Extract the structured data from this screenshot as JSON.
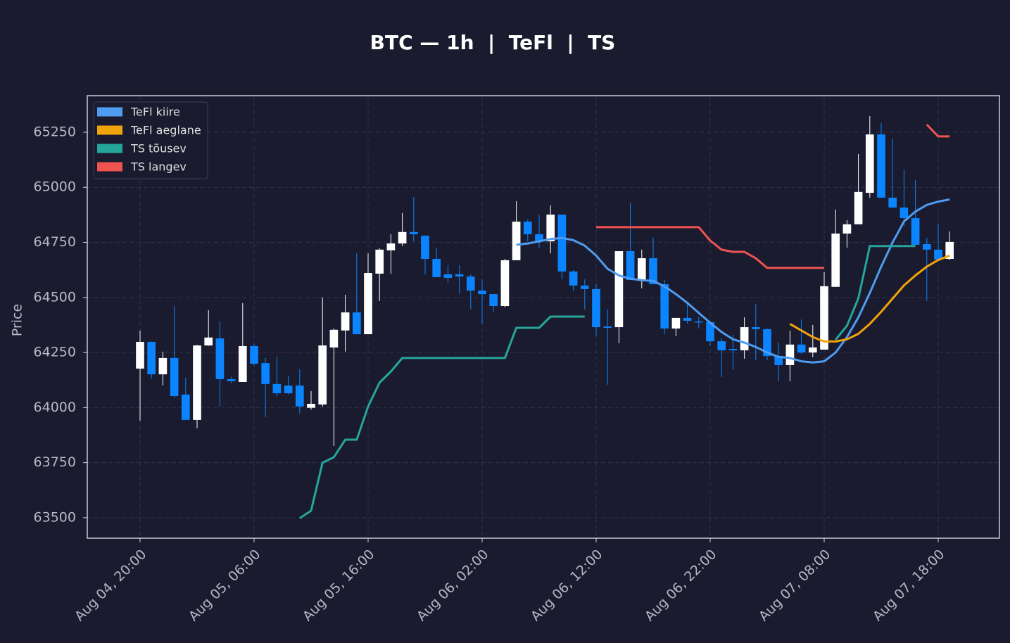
{
  "chart_data": {
    "type": "candlestick",
    "title": "BTC — 1h  |  TeFl  |  TS",
    "y_label": "Price",
    "x": [
      "Aug 04, 20:00",
      "Aug 04, 21:00",
      "Aug 04, 22:00",
      "Aug 04, 23:00",
      "Aug 05, 00:00",
      "Aug 05, 01:00",
      "Aug 05, 02:00",
      "Aug 05, 03:00",
      "Aug 05, 04:00",
      "Aug 05, 05:00",
      "Aug 05, 06:00",
      "Aug 05, 07:00",
      "Aug 05, 08:00",
      "Aug 05, 09:00",
      "Aug 05, 10:00",
      "Aug 05, 11:00",
      "Aug 05, 12:00",
      "Aug 05, 13:00",
      "Aug 05, 14:00",
      "Aug 05, 15:00",
      "Aug 05, 16:00",
      "Aug 05, 17:00",
      "Aug 05, 18:00",
      "Aug 05, 19:00",
      "Aug 05, 20:00",
      "Aug 05, 21:00",
      "Aug 05, 22:00",
      "Aug 05, 23:00",
      "Aug 06, 00:00",
      "Aug 06, 01:00",
      "Aug 06, 02:00",
      "Aug 06, 03:00",
      "Aug 06, 04:00",
      "Aug 06, 05:00",
      "Aug 06, 06:00",
      "Aug 06, 07:00",
      "Aug 06, 08:00",
      "Aug 06, 09:00",
      "Aug 06, 10:00",
      "Aug 06, 11:00",
      "Aug 06, 12:00",
      "Aug 06, 13:00",
      "Aug 06, 14:00",
      "Aug 06, 15:00",
      "Aug 06, 16:00",
      "Aug 06, 17:00",
      "Aug 06, 18:00",
      "Aug 06, 19:00",
      "Aug 06, 20:00",
      "Aug 06, 21:00",
      "Aug 06, 22:00",
      "Aug 06, 23:00",
      "Aug 07, 00:00",
      "Aug 07, 01:00",
      "Aug 07, 02:00",
      "Aug 07, 03:00",
      "Aug 07, 04:00",
      "Aug 07, 05:00",
      "Aug 07, 06:00",
      "Aug 07, 07:00",
      "Aug 07, 08:00",
      "Aug 07, 09:00",
      "Aug 07, 10:00",
      "Aug 07, 11:00",
      "Aug 07, 12:00",
      "Aug 07, 13:00",
      "Aug 07, 14:00",
      "Aug 07, 15:00",
      "Aug 07, 16:00",
      "Aug 07, 17:00",
      "Aug 07, 18:00",
      "Aug 07, 19:00"
    ],
    "open": [
      64177,
      64298,
      64151,
      64225,
      64059,
      63944,
      64282,
      64314,
      64129,
      64116,
      64279,
      64202,
      64107,
      64100,
      64100,
      63999,
      64014,
      64273,
      64350,
      64432,
      64333,
      64608,
      64714,
      64745,
      64797,
      64780,
      64675,
      64605,
      64605,
      64595,
      64531,
      64515,
      64461,
      64669,
      64844,
      64787,
      64755,
      64876,
      64618,
      64554,
      64538,
      64368,
      64365,
      64710,
      64579,
      64678,
      64560,
      64359,
      64407,
      64391,
      64388,
      64301,
      64266,
      64260,
      64365,
      64356,
      64234,
      64193,
      64286,
      64250,
      64263,
      64548,
      64790,
      64832,
      64975,
      65240,
      64953,
      64908,
      64860,
      64742,
      64717,
      64675
    ],
    "high": [
      64349,
      64300,
      64254,
      64461,
      64135,
      64285,
      64442,
      64391,
      64140,
      64474,
      64289,
      64225,
      64231,
      64145,
      64174,
      64075,
      64500,
      64359,
      64512,
      64700,
      64700,
      64723,
      64787,
      64883,
      64956,
      64782,
      64726,
      64646,
      64646,
      64605,
      64582,
      64515,
      64675,
      64937,
      64854,
      64876,
      64918,
      64876,
      64624,
      64582,
      64560,
      64445,
      64710,
      64930,
      64717,
      64771,
      64579,
      64407,
      64477,
      64413,
      64388,
      64314,
      64330,
      64410,
      64471,
      64359,
      64295,
      64349,
      64400,
      64375,
      64615,
      64899,
      64851,
      65151,
      65323,
      65291,
      65221,
      65081,
      65033,
      64771,
      64832,
      64800
    ],
    "low": [
      63941,
      64132,
      64100,
      64043,
      63944,
      63906,
      64280,
      64005,
      64110,
      64116,
      64190,
      63957,
      64052,
      64060,
      63973,
      63990,
      64005,
      63826,
      64254,
      64333,
      64333,
      64484,
      64608,
      64733,
      64755,
      64605,
      64592,
      64567,
      64516,
      64445,
      64378,
      64432,
      64455,
      64669,
      64755,
      64726,
      64700,
      64583,
      64531,
      64445,
      64327,
      64104,
      64292,
      64579,
      64541,
      64560,
      64333,
      64324,
      64381,
      64359,
      64279,
      64139,
      64171,
      64222,
      64215,
      64215,
      64120,
      64120,
      64244,
      64228,
      64263,
      64548,
      64726,
      64832,
      64953,
      64953,
      64908,
      64825,
      64739,
      64484,
      64665,
      64669
    ],
    "close": [
      64298,
      64151,
      64225,
      64052,
      63944,
      64282,
      64318,
      64129,
      64120,
      64279,
      64199,
      64107,
      64065,
      64065,
      64005,
      64017,
      64282,
      64353,
      64432,
      64333,
      64611,
      64717,
      64745,
      64797,
      64787,
      64675,
      64592,
      64589,
      64595,
      64531,
      64515,
      64461,
      64669,
      64844,
      64787,
      64755,
      64876,
      64618,
      64554,
      64538,
      64365,
      64362,
      64710,
      64579,
      64678,
      64560,
      64359,
      64407,
      64394,
      64388,
      64301,
      64260,
      64260,
      64365,
      64356,
      64234,
      64193,
      64286,
      64250,
      64273,
      64551,
      64790,
      64832,
      64979,
      65240,
      64953,
      64908,
      64860,
      64739,
      64717,
      64672,
      64752
    ],
    "up_color": "#ffffff",
    "down_color": "#0a84ff",
    "series": [
      {
        "name": "TeFl kiire",
        "color": "#4f9cf0",
        "values": [
          null,
          null,
          null,
          null,
          null,
          null,
          null,
          null,
          null,
          null,
          null,
          null,
          null,
          null,
          null,
          null,
          null,
          null,
          null,
          null,
          null,
          null,
          null,
          null,
          null,
          null,
          null,
          null,
          null,
          null,
          null,
          null,
          null,
          64739,
          64745,
          64755,
          64765,
          64770,
          64760,
          64735,
          64690,
          64630,
          64600,
          64585,
          64578,
          64575,
          64550,
          64515,
          64475,
          64430,
          64385,
          64343,
          64310,
          64295,
          64275,
          64250,
          64230,
          64225,
          64210,
          64205,
          64210,
          64250,
          64320,
          64410,
          64520,
          64640,
          64750,
          64845,
          64890,
          64920,
          64935,
          64945
        ]
      },
      {
        "name": "TeFl aeglane",
        "color": "#f0a30a",
        "values": [
          null,
          null,
          null,
          null,
          null,
          null,
          null,
          null,
          null,
          null,
          null,
          null,
          null,
          null,
          null,
          null,
          null,
          null,
          null,
          null,
          null,
          null,
          null,
          null,
          null,
          null,
          null,
          null,
          null,
          null,
          null,
          null,
          null,
          null,
          null,
          null,
          null,
          null,
          null,
          null,
          null,
          null,
          null,
          null,
          null,
          null,
          null,
          null,
          null,
          null,
          null,
          null,
          null,
          null,
          null,
          null,
          null,
          64380,
          64350,
          64320,
          64300,
          64300,
          64310,
          64335,
          64380,
          64435,
          64495,
          64555,
          64600,
          64640,
          64670,
          64690
        ]
      },
      {
        "name": "TS tõusev",
        "color": "#26a69a",
        "values": [
          null,
          null,
          null,
          null,
          null,
          null,
          null,
          null,
          null,
          null,
          null,
          null,
          null,
          null,
          63497,
          63532,
          63749,
          63775,
          63854,
          63854,
          64005,
          64113,
          64164,
          64225,
          64225,
          64225,
          64225,
          64225,
          64225,
          64225,
          64225,
          64225,
          64225,
          64362,
          64362,
          64362,
          64413,
          64413,
          64413,
          64413,
          null,
          null,
          null,
          null,
          null,
          null,
          null,
          null,
          null,
          null,
          null,
          null,
          null,
          null,
          null,
          null,
          null,
          null,
          null,
          null,
          null,
          64308,
          64372,
          64496,
          64733,
          64733,
          64733,
          64733,
          64733,
          null,
          null,
          null
        ]
      },
      {
        "name": "TS langev",
        "color": "#ef5350",
        "values": [
          null,
          null,
          null,
          null,
          null,
          null,
          null,
          null,
          null,
          null,
          null,
          null,
          null,
          null,
          null,
          null,
          null,
          null,
          null,
          null,
          null,
          null,
          null,
          null,
          null,
          null,
          null,
          null,
          null,
          null,
          null,
          null,
          null,
          null,
          null,
          null,
          null,
          null,
          null,
          null,
          64819,
          64819,
          64819,
          64819,
          64819,
          64819,
          64819,
          64819,
          64819,
          64819,
          64758,
          64717,
          64707,
          64707,
          64678,
          64634,
          64634,
          64634,
          64634,
          64634,
          64634,
          null,
          null,
          null,
          null,
          null,
          null,
          null,
          null,
          65285,
          65231,
          65231
        ]
      }
    ],
    "xlim": [
      -4.63,
      75.37
    ],
    "xticks": [
      {
        "value": 0,
        "label": "Aug 04, 20:00"
      },
      {
        "value": 10,
        "label": "Aug 05, 06:00"
      },
      {
        "value": 20,
        "label": "Aug 05, 16:00"
      },
      {
        "value": 30,
        "label": "Aug 06, 02:00"
      },
      {
        "value": 40,
        "label": "Aug 06, 12:00"
      },
      {
        "value": 50,
        "label": "Aug 06, 22:00"
      },
      {
        "value": 60,
        "label": "Aug 07, 08:00"
      },
      {
        "value": 70,
        "label": "Aug 07, 18:00"
      }
    ],
    "ylim": [
      63407,
      65416
    ],
    "yticks": [
      63500,
      63750,
      64000,
      64250,
      64500,
      64750,
      65000,
      65250
    ],
    "grid": true,
    "legend": "upper left"
  }
}
